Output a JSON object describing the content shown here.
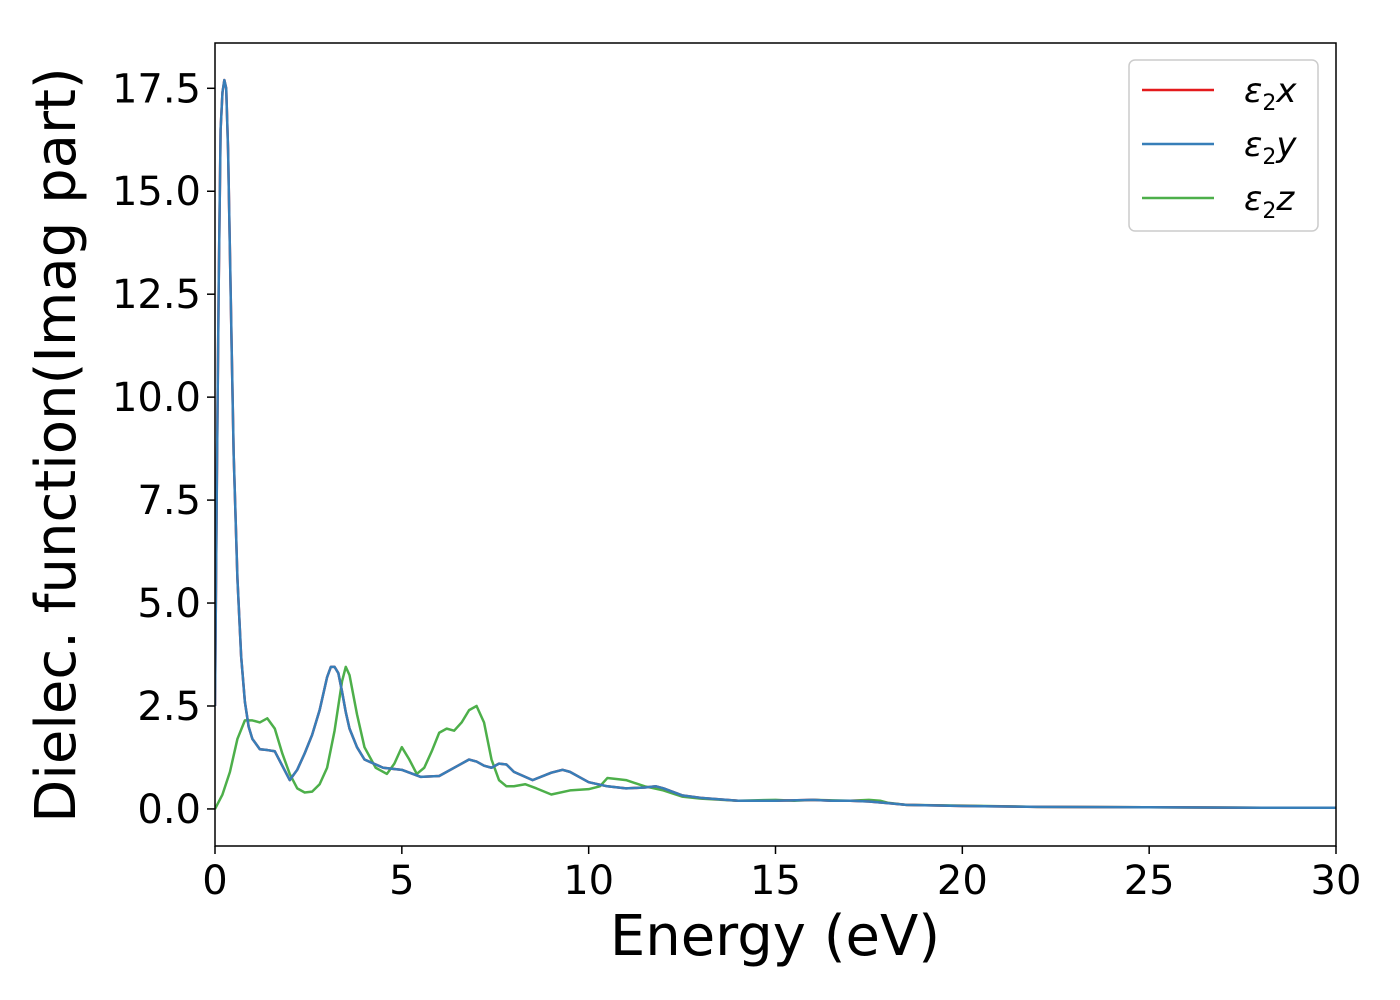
{
  "chart_data": {
    "type": "line",
    "title": "",
    "xlabel": "Energy (eV)",
    "ylabel": "Dielec. function(Imag part)",
    "xlim": [
      0,
      30
    ],
    "ylim": [
      -0.9,
      18.6
    ],
    "xticks": [
      0,
      5,
      10,
      15,
      20,
      25,
      30
    ],
    "xtick_labels": [
      "0",
      "5",
      "10",
      "15",
      "20",
      "25",
      "30"
    ],
    "yticks": [
      0.0,
      2.5,
      5.0,
      7.5,
      10.0,
      12.5,
      15.0,
      17.5
    ],
    "ytick_labels": [
      "0.0",
      "2.5",
      "5.0",
      "7.5",
      "10.0",
      "12.5",
      "15.0",
      "17.5"
    ],
    "grid": false,
    "legend_position": "top-right",
    "series": [
      {
        "name": "ε2x",
        "legend_symbol": "ε",
        "legend_sub": "2",
        "legend_var": "x",
        "color": "#e41a1c",
        "x": [
          0,
          0.05,
          0.1,
          0.15,
          0.2,
          0.25,
          0.3,
          0.35,
          0.4,
          0.45,
          0.5,
          0.6,
          0.7,
          0.8,
          0.9,
          1.0,
          1.2,
          1.4,
          1.6,
          1.8,
          2.0,
          2.2,
          2.4,
          2.6,
          2.8,
          3.0,
          3.1,
          3.2,
          3.3,
          3.4,
          3.5,
          3.6,
          3.8,
          4.0,
          4.5,
          5.0,
          5.5,
          6.0,
          6.5,
          6.8,
          7.0,
          7.2,
          7.4,
          7.6,
          7.8,
          8.0,
          8.5,
          9.0,
          9.3,
          9.5,
          9.8,
          10.0,
          10.5,
          11.0,
          11.5,
          11.8,
          12.0,
          12.5,
          13.0,
          14.0,
          15.0,
          16.0,
          16.5,
          17.0,
          17.5,
          18.0,
          18.5,
          20.0,
          22.0,
          25.0,
          28.0,
          30.0
        ],
        "values": [
          2.5,
          8.0,
          12.8,
          16.5,
          17.4,
          17.7,
          17.5,
          16.0,
          13.5,
          11.0,
          8.6,
          5.6,
          3.7,
          2.6,
          2.0,
          1.7,
          1.45,
          1.43,
          1.4,
          1.05,
          0.7,
          0.95,
          1.35,
          1.8,
          2.4,
          3.2,
          3.45,
          3.45,
          3.3,
          2.85,
          2.35,
          1.95,
          1.5,
          1.2,
          1.0,
          0.95,
          0.78,
          0.8,
          1.05,
          1.2,
          1.15,
          1.05,
          1.0,
          1.1,
          1.08,
          0.9,
          0.7,
          0.88,
          0.95,
          0.9,
          0.75,
          0.65,
          0.55,
          0.5,
          0.52,
          0.55,
          0.5,
          0.33,
          0.27,
          0.2,
          0.2,
          0.22,
          0.2,
          0.2,
          0.18,
          0.14,
          0.1,
          0.07,
          0.05,
          0.04,
          0.03,
          0.03
        ]
      },
      {
        "name": "ε2y",
        "legend_symbol": "ε",
        "legend_sub": "2",
        "legend_var": "y",
        "color": "#377eb8",
        "x": [
          0,
          0.05,
          0.1,
          0.15,
          0.2,
          0.25,
          0.3,
          0.35,
          0.4,
          0.45,
          0.5,
          0.6,
          0.7,
          0.8,
          0.9,
          1.0,
          1.2,
          1.4,
          1.6,
          1.8,
          2.0,
          2.2,
          2.4,
          2.6,
          2.8,
          3.0,
          3.1,
          3.2,
          3.3,
          3.4,
          3.5,
          3.6,
          3.8,
          4.0,
          4.5,
          5.0,
          5.5,
          6.0,
          6.5,
          6.8,
          7.0,
          7.2,
          7.4,
          7.6,
          7.8,
          8.0,
          8.5,
          9.0,
          9.3,
          9.5,
          9.8,
          10.0,
          10.5,
          11.0,
          11.5,
          11.8,
          12.0,
          12.5,
          13.0,
          14.0,
          15.0,
          16.0,
          16.5,
          17.0,
          17.5,
          18.0,
          18.5,
          20.0,
          22.0,
          25.0,
          28.0,
          30.0
        ],
        "values": [
          2.5,
          8.0,
          12.8,
          16.5,
          17.4,
          17.7,
          17.5,
          16.0,
          13.5,
          11.0,
          8.6,
          5.6,
          3.7,
          2.6,
          2.0,
          1.7,
          1.45,
          1.43,
          1.4,
          1.05,
          0.7,
          0.95,
          1.35,
          1.8,
          2.4,
          3.2,
          3.45,
          3.45,
          3.3,
          2.85,
          2.35,
          1.95,
          1.5,
          1.2,
          1.0,
          0.95,
          0.78,
          0.8,
          1.05,
          1.2,
          1.15,
          1.05,
          1.0,
          1.1,
          1.08,
          0.9,
          0.7,
          0.88,
          0.95,
          0.9,
          0.75,
          0.65,
          0.55,
          0.5,
          0.52,
          0.55,
          0.5,
          0.33,
          0.27,
          0.2,
          0.2,
          0.22,
          0.2,
          0.2,
          0.18,
          0.14,
          0.1,
          0.07,
          0.05,
          0.04,
          0.03,
          0.03
        ]
      },
      {
        "name": "ε2z",
        "legend_symbol": "ε",
        "legend_sub": "2",
        "legend_var": "z",
        "color": "#4daf4a",
        "x": [
          0,
          0.2,
          0.4,
          0.6,
          0.8,
          1.0,
          1.2,
          1.4,
          1.6,
          1.8,
          2.0,
          2.2,
          2.4,
          2.6,
          2.8,
          3.0,
          3.2,
          3.4,
          3.5,
          3.6,
          3.8,
          4.0,
          4.3,
          4.6,
          4.8,
          5.0,
          5.2,
          5.4,
          5.6,
          5.8,
          6.0,
          6.2,
          6.4,
          6.6,
          6.8,
          7.0,
          7.2,
          7.4,
          7.6,
          7.8,
          8.0,
          8.3,
          8.6,
          9.0,
          9.5,
          10.0,
          10.3,
          10.5,
          10.8,
          11.0,
          11.5,
          12.0,
          12.5,
          13.0,
          14.0,
          15.0,
          15.5,
          16.0,
          17.0,
          17.5,
          17.8,
          18.0,
          18.5,
          20.0,
          22.0,
          25.0,
          28.0,
          30.0
        ],
        "values": [
          0.0,
          0.35,
          0.9,
          1.7,
          2.15,
          2.15,
          2.1,
          2.2,
          1.95,
          1.35,
          0.85,
          0.5,
          0.4,
          0.42,
          0.6,
          1.0,
          1.9,
          3.1,
          3.45,
          3.25,
          2.3,
          1.5,
          1.0,
          0.85,
          1.1,
          1.5,
          1.2,
          0.85,
          1.0,
          1.4,
          1.85,
          1.95,
          1.9,
          2.1,
          2.4,
          2.5,
          2.1,
          1.2,
          0.7,
          0.55,
          0.55,
          0.6,
          0.5,
          0.35,
          0.45,
          0.48,
          0.55,
          0.75,
          0.72,
          0.7,
          0.55,
          0.45,
          0.3,
          0.25,
          0.2,
          0.22,
          0.2,
          0.22,
          0.2,
          0.22,
          0.2,
          0.15,
          0.1,
          0.08,
          0.05,
          0.04,
          0.03,
          0.03
        ]
      }
    ]
  }
}
